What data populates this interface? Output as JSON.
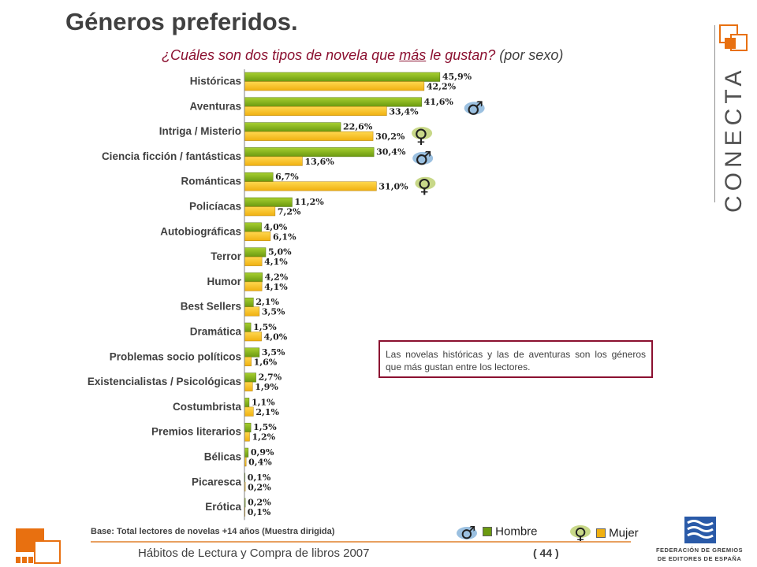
{
  "header": {
    "title": "Géneros preferidos.",
    "subtitle_pre": "¿Cuáles son dos tipos de novela que ",
    "subtitle_underlined": "más",
    "subtitle_post": " le gustan?",
    "subtitle_sex": " (por sexo)"
  },
  "brand": {
    "name": "CONECTA"
  },
  "note": {
    "text": "Las novelas históricas y las de aventuras son los géneros que más gustan entre los lectores."
  },
  "footer": {
    "base": "Base: Total lectores de novelas +14 años (Muestra dirigida)",
    "report": "Hábitos de Lectura y Compra de libros 2007",
    "page": "( 44 )",
    "federation": [
      "FEDERACIÓN DE GREMIOS",
      "DE EDITORES DE ESPAÑA"
    ]
  },
  "legend": {
    "hombre": "Hombre",
    "mujer": "Mujer",
    "male_symbol": "♂",
    "female_symbol": "♀"
  },
  "colors": {
    "hombre": "#6b9a10",
    "mujer": "#f0b010",
    "accent": "#8b1030",
    "orange": "#e87010"
  },
  "chart_data": {
    "type": "bar",
    "orientation": "horizontal",
    "categories": [
      "Históricas",
      "Aventuras",
      "Intriga / Misterio",
      "Ciencia ficción / fantásticas",
      "Románticas",
      "Policíacas",
      "Autobiográficas",
      "Terror",
      "Humor",
      "Best Sellers",
      "Dramática",
      "Problemas socio políticos",
      "Existencialistas / Psicológicas",
      "Costumbrista",
      "Premios literarios",
      "Bélicas",
      "Picaresca",
      "Erótica"
    ],
    "series": [
      {
        "name": "Hombre",
        "values": [
          45.9,
          41.6,
          22.6,
          30.4,
          6.7,
          11.2,
          4.0,
          5.0,
          4.2,
          2.1,
          1.5,
          3.5,
          2.7,
          1.1,
          1.5,
          0.9,
          0.1,
          0.2
        ]
      },
      {
        "name": "Mujer",
        "values": [
          42.2,
          33.4,
          30.2,
          13.6,
          31.0,
          7.2,
          6.1,
          4.1,
          4.1,
          3.5,
          4.0,
          1.6,
          1.9,
          2.1,
          1.2,
          0.4,
          0.2,
          0.1
        ]
      }
    ],
    "labels": {
      "Hombre": [
        "45,9%",
        "41,6%",
        "22,6%",
        "30,4%",
        "6,7%",
        "11,2%",
        "4,0%",
        "5,0%",
        "4,2%",
        "2,1%",
        "1,5%",
        "3,5%",
        "2,7%",
        "1,1%",
        "1,5%",
        "0,9%",
        "0,1%",
        "0,2%"
      ],
      "Mujer": [
        "42,2%",
        "33,4%",
        "30,2%",
        "13,6%",
        "31,0%",
        "7,2%",
        "6,1%",
        "4,1%",
        "4,1%",
        "3,5%",
        "4,0%",
        "1,6%",
        "1,9%",
        "2,1%",
        "1,2%",
        "0,4%",
        "0,2%",
        "0,1%"
      ]
    },
    "markers": [
      {
        "category": "Aventuras",
        "symbol": "♂"
      },
      {
        "category": "Intriga / Misterio",
        "symbol": "♀"
      },
      {
        "category": "Ciencia ficción / fantásticas",
        "symbol": "♂"
      },
      {
        "category": "Románticas",
        "symbol": "♀"
      }
    ],
    "xlim": [
      0,
      50
    ],
    "legend_position": "bottom"
  }
}
